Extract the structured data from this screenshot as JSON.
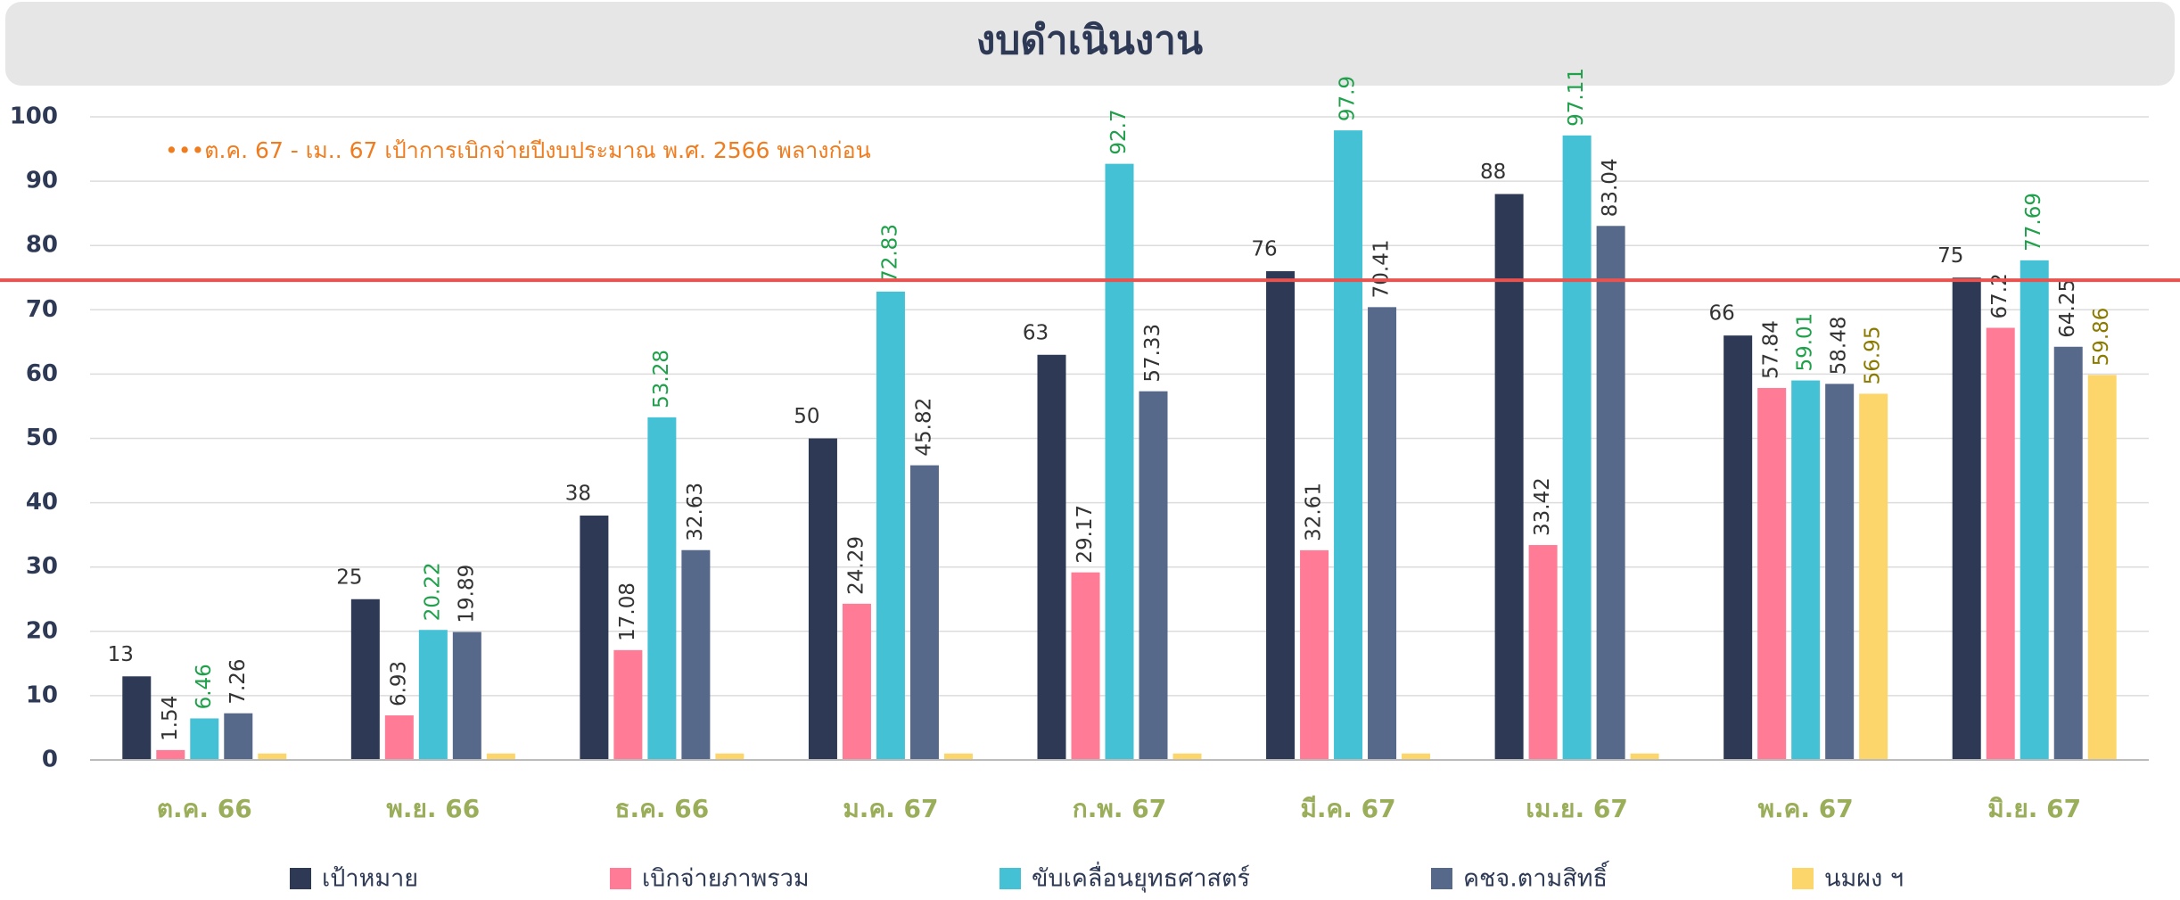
{
  "chart_data": {
    "type": "bar",
    "title": "งบดำเนินงาน",
    "annotation": "•••ต.ค. 67 - เม.. 67 เป้าการเบิกจ่ายปีงบประมาณ พ.ศ. 2566 พลางก่อน",
    "categories": [
      "ต.ค. 66",
      "พ.ย. 66",
      "ธ.ค. 66",
      "ม.ค. 67",
      "ก.พ. 67",
      "มี.ค. 67",
      "เม.ย. 67",
      "พ.ค. 67",
      "มิ.ย. 67"
    ],
    "series": [
      {
        "name": "เป้าหมาย",
        "color": "#2e3a55",
        "label_color": "#333333",
        "values": [
          13,
          25,
          38,
          50,
          63,
          76,
          88,
          66,
          75
        ]
      },
      {
        "name": "เบิกจ่ายภาพรวม",
        "color": "#ff7b96",
        "label_color": "#333333",
        "values": [
          1.54,
          6.93,
          17.08,
          24.29,
          29.17,
          32.61,
          33.42,
          57.84,
          67.2
        ]
      },
      {
        "name": "ขับเคลื่อนยุทธศาสตร์",
        "color": "#45c1d6",
        "label_color": "#1fa04a",
        "values": [
          6.46,
          20.22,
          53.28,
          72.83,
          92.7,
          97.9,
          97.11,
          59.01,
          77.69
        ]
      },
      {
        "name": "คชจ.ตามสิทธิ์",
        "color": "#56698a",
        "label_color": "#333333",
        "values": [
          7.26,
          19.89,
          32.63,
          45.82,
          57.33,
          70.41,
          83.04,
          58.48,
          64.25
        ]
      },
      {
        "name": "นมผง ฯ",
        "color": "#fcd66b",
        "label_color": "#8a7a00",
        "values": [
          1,
          1,
          1,
          1,
          1,
          1,
          1,
          56.95,
          59.86
        ],
        "value_labels": [
          null,
          null,
          null,
          null,
          null,
          null,
          null,
          "56.95",
          "59.86"
        ]
      }
    ],
    "reference_line": {
      "value": 74.6,
      "color": "#e8524f"
    },
    "ylim": [
      0,
      100
    ],
    "yticks": [
      0,
      10,
      20,
      30,
      40,
      50,
      60,
      70,
      80,
      90,
      100
    ],
    "grid": true
  }
}
